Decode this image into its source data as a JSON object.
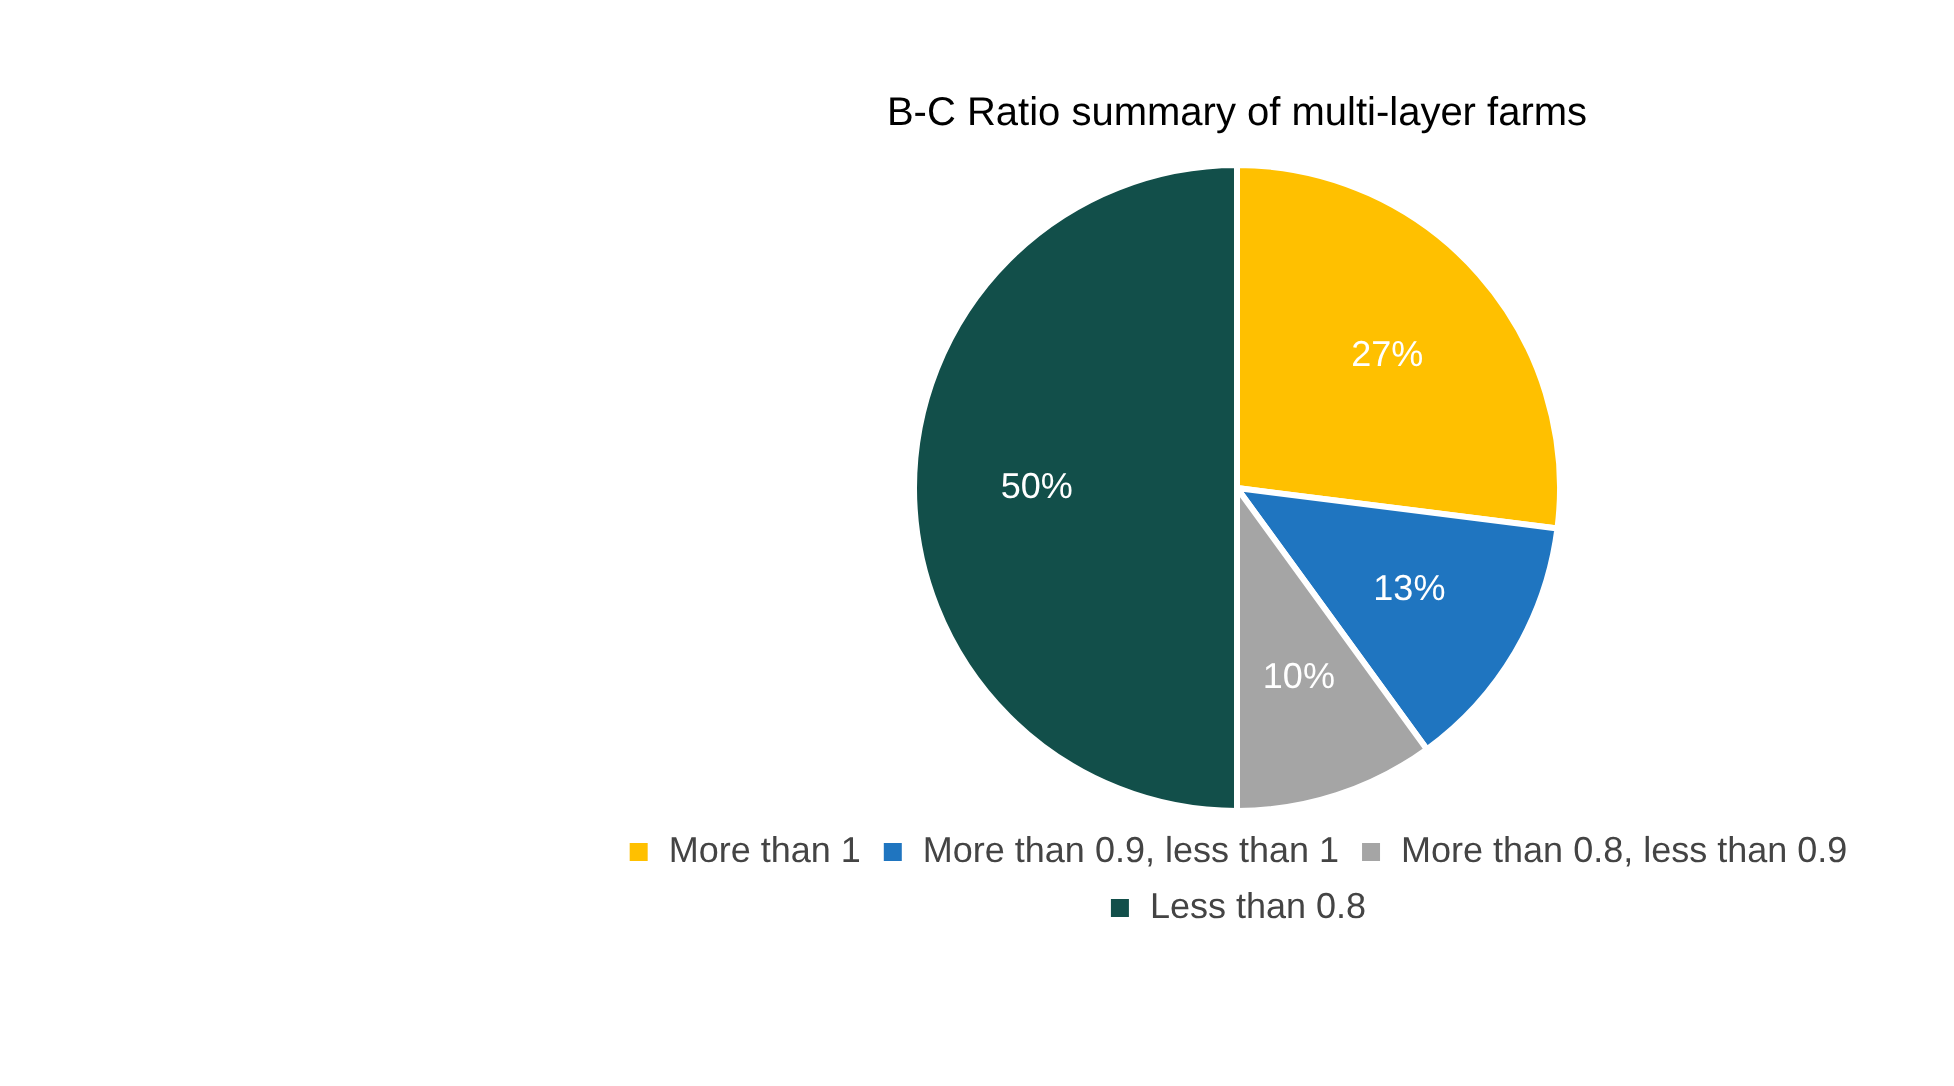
{
  "chart_data": {
    "type": "pie",
    "title": "B-C Ratio summary of multi-layer farms",
    "categories": [
      "More than 1",
      "More than 0.9, less than 1",
      "More than 0.8, less than 0.9",
      "Less than 0.8"
    ],
    "values": [
      27,
      13,
      10,
      50
    ],
    "value_labels": [
      "27%",
      "13%",
      "10%",
      "50%"
    ],
    "colors": [
      "#ffc000",
      "#1f75c0",
      "#a5a5a5",
      "#124f4a"
    ],
    "legend": "bottom"
  }
}
